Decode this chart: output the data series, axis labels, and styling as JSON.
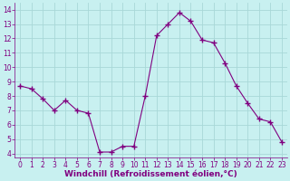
{
  "x": [
    0,
    1,
    2,
    3,
    4,
    5,
    6,
    7,
    8,
    9,
    10,
    11,
    12,
    13,
    14,
    15,
    16,
    17,
    18,
    19,
    20,
    21,
    22,
    23
  ],
  "y": [
    8.7,
    8.5,
    7.8,
    7.0,
    7.7,
    7.0,
    6.8,
    4.1,
    4.1,
    4.5,
    4.5,
    8.0,
    12.2,
    13.0,
    13.8,
    13.2,
    11.9,
    11.7,
    10.3,
    8.7,
    7.5,
    6.4,
    6.2,
    4.8
  ],
  "line_color": "#800080",
  "marker": "+",
  "marker_size": 4,
  "bg_color": "#c8f0f0",
  "grid_color": "#a8d8d8",
  "xlabel": "Windchill (Refroidissement éolien,°C)",
  "xlabel_color": "#800080",
  "tick_color": "#800080",
  "spine_color": "#800080",
  "ylim": [
    3.7,
    14.5
  ],
  "xlim": [
    -0.5,
    23.5
  ],
  "yticks": [
    4,
    5,
    6,
    7,
    8,
    9,
    10,
    11,
    12,
    13,
    14
  ],
  "xticks": [
    0,
    1,
    2,
    3,
    4,
    5,
    6,
    7,
    8,
    9,
    10,
    11,
    12,
    13,
    14,
    15,
    16,
    17,
    18,
    19,
    20,
    21,
    22,
    23
  ],
  "tick_fontsize": 5.5,
  "xlabel_fontsize": 6.5
}
